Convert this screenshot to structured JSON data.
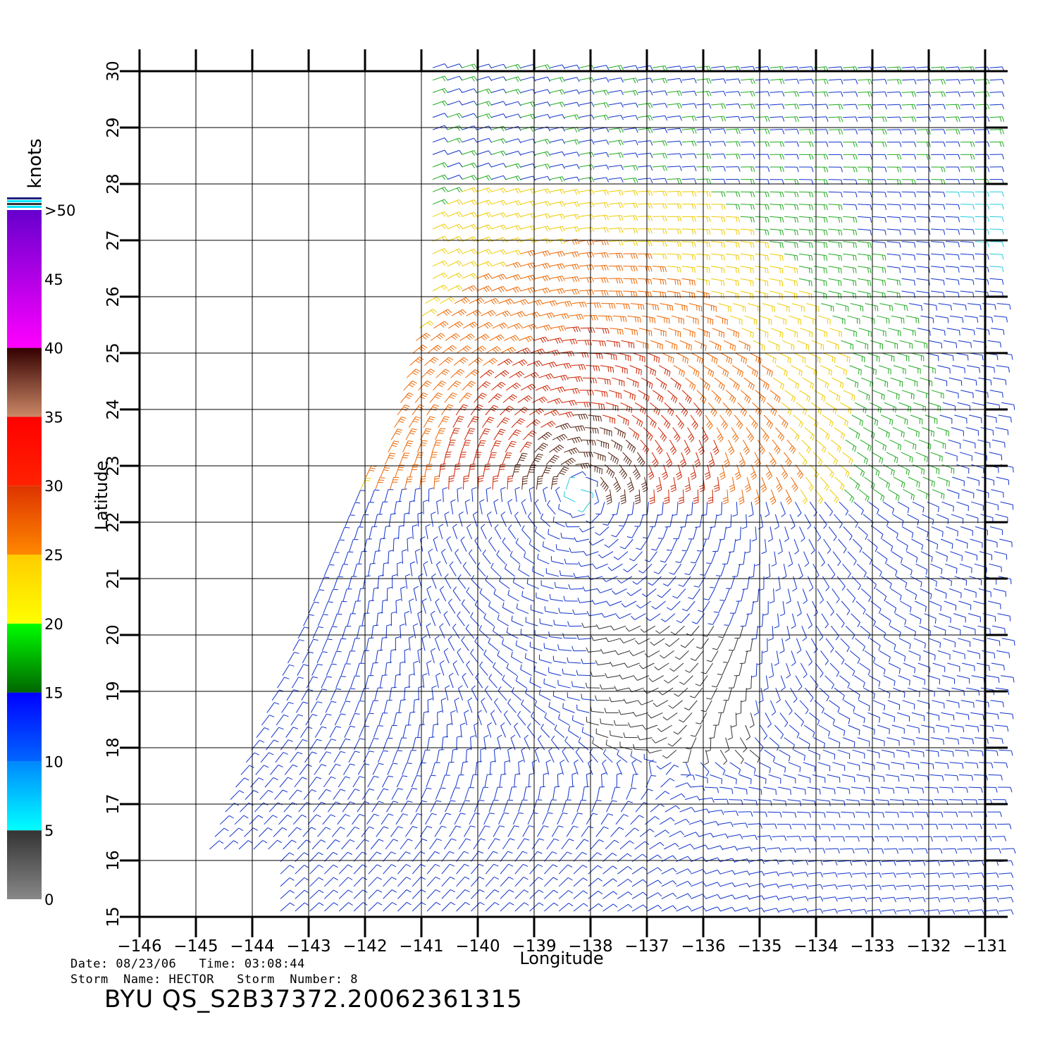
{
  "plot": {
    "xlabel": "Longitude",
    "ylabel": "Latitude",
    "x_ticks": [
      -146,
      -145,
      -144,
      -143,
      -142,
      -141,
      -140,
      -139,
      -138,
      -137,
      -136,
      -135,
      -134,
      -133,
      -132,
      -131
    ],
    "y_ticks": [
      15,
      16,
      17,
      18,
      19,
      20,
      21,
      22,
      23,
      24,
      25,
      26,
      27,
      28,
      29,
      30
    ],
    "x_range": [
      -146,
      -130.6
    ],
    "y_range": [
      15,
      30
    ],
    "storm_center": [
      -138.2,
      22.5
    ],
    "grid": true
  },
  "colorbar": {
    "unit": "knots",
    "labels": [
      "0",
      "5",
      "10",
      "15",
      "20",
      "25",
      "30",
      "35",
      "40",
      "45",
      ">50"
    ],
    "segments": [
      {
        "from": 0,
        "to": 5,
        "colors": [
          "#888888",
          "#333333"
        ]
      },
      {
        "from": 5,
        "to": 10,
        "colors": [
          "#00ffff",
          "#0088ff"
        ]
      },
      {
        "from": 10,
        "to": 15,
        "colors": [
          "#0066ff",
          "#0000ff"
        ]
      },
      {
        "from": 15,
        "to": 20,
        "colors": [
          "#006600",
          "#00ff00"
        ]
      },
      {
        "from": 20,
        "to": 25,
        "colors": [
          "#ffff00",
          "#ffcc00"
        ]
      },
      {
        "from": 25,
        "to": 30,
        "colors": [
          "#ff8800",
          "#dd3300"
        ]
      },
      {
        "from": 30,
        "to": 35,
        "colors": [
          "#ff2200",
          "#ff0000"
        ]
      },
      {
        "from": 35,
        "to": 40,
        "colors": [
          "#cc8866",
          "#330000"
        ]
      },
      {
        "from": 40,
        "to": 50,
        "colors": [
          "#ff00ff",
          "#6600cc"
        ]
      }
    ]
  },
  "info": {
    "line1": "Date: 08/23/06   Time: 03:08:44",
    "line2": "Storm  Name: HECTOR   Storm  Number: 8",
    "title": "BYU  QS_S2B37372.20062361315"
  }
}
